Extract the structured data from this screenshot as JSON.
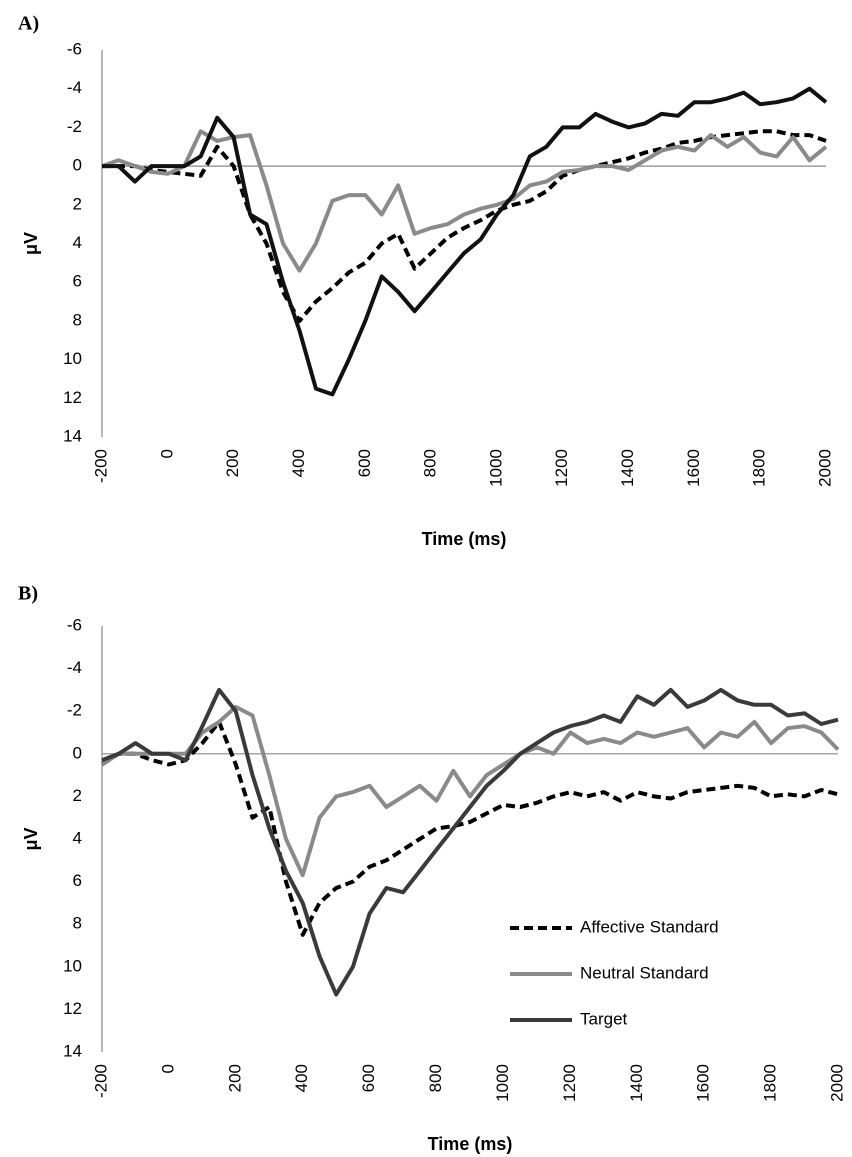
{
  "chart_data": [
    {
      "type": "line",
      "title": "A)",
      "y_label": "μV",
      "x_label": "Time (ms)",
      "x": [
        -200,
        -150,
        -100,
        -50,
        0,
        50,
        100,
        150,
        200,
        250,
        300,
        350,
        400,
        450,
        500,
        550,
        600,
        650,
        700,
        750,
        800,
        850,
        900,
        950,
        1000,
        1050,
        1100,
        1150,
        1200,
        1250,
        1300,
        1350,
        1400,
        1450,
        1500,
        1550,
        1600,
        1650,
        1700,
        1750,
        1800,
        1850,
        1900,
        1950,
        2000
      ],
      "xlim": [
        -200,
        2000
      ],
      "xticks": [
        -200,
        0,
        200,
        400,
        600,
        800,
        1000,
        1200,
        1400,
        1600,
        1800,
        2000
      ],
      "ylim": [
        -6,
        14
      ],
      "y_inverted": true,
      "yticks": [
        -6,
        -4,
        -2,
        0,
        2,
        4,
        6,
        8,
        10,
        12,
        14
      ],
      "series": [
        {
          "color": "#000000",
          "dash": true,
          "values": [
            0,
            0,
            0,
            0.2,
            0.3,
            0.4,
            0.5,
            -1,
            0,
            2.5,
            4,
            6.5,
            8,
            7,
            6.3,
            5.5,
            5,
            4,
            3.5,
            5.3,
            4.5,
            3.7,
            3.2,
            2.8,
            2.3,
            2,
            1.8,
            1.3,
            0.5,
            0.2,
            0,
            -0.2,
            -0.4,
            -0.7,
            -0.9,
            -1.2,
            -1.3,
            -1.5,
            -1.6,
            -1.7,
            -1.8,
            -1.8,
            -1.6,
            -1.6,
            -1.3
          ]
        },
        {
          "color": "#8a8a8a",
          "dash": false,
          "values": [
            0,
            -0.3,
            0,
            0.3,
            0.4,
            0,
            -1.8,
            -1.3,
            -1.5,
            -1.6,
            1,
            4,
            5.4,
            4,
            1.8,
            1.5,
            1.5,
            2.5,
            1,
            3.5,
            3.2,
            3,
            2.5,
            2.2,
            2,
            1.7,
            1,
            0.8,
            0.3,
            0.2,
            0,
            0,
            0.2,
            -0.3,
            -0.8,
            -1,
            -0.8,
            -1.6,
            -1,
            -1.5,
            -0.7,
            -0.5,
            -1.5,
            -0.3,
            -1
          ]
        },
        {
          "color": "#111111",
          "dash": false,
          "values": [
            0,
            0,
            0.8,
            0,
            0,
            0,
            -0.5,
            -2.5,
            -1.5,
            2.5,
            3,
            6,
            8.5,
            11.5,
            11.8,
            10,
            8,
            5.7,
            6.5,
            7.5,
            6.5,
            5.5,
            4.5,
            3.8,
            2.5,
            1.5,
            -0.5,
            -1,
            -2,
            -2,
            -2.7,
            -2.3,
            -2,
            -2.2,
            -2.7,
            -2.6,
            -3.3,
            -3.3,
            -3.5,
            -3.8,
            -3.2,
            -3.3,
            -3.5,
            -4,
            -3.3
          ]
        }
      ]
    },
    {
      "type": "line",
      "title": "B)",
      "y_label": "μV",
      "x_label": "Time (ms)",
      "legend": "lower right",
      "x": [
        -200,
        -150,
        -100,
        -50,
        0,
        50,
        100,
        150,
        200,
        250,
        300,
        350,
        400,
        450,
        500,
        550,
        600,
        650,
        700,
        750,
        800,
        850,
        900,
        950,
        1000,
        1050,
        1100,
        1150,
        1200,
        1250,
        1300,
        1350,
        1400,
        1450,
        1500,
        1550,
        1600,
        1650,
        1700,
        1750,
        1800,
        1850,
        1900,
        1950,
        2000
      ],
      "xlim": [
        -200,
        2000
      ],
      "xticks": [
        -200,
        0,
        200,
        400,
        600,
        800,
        1000,
        1200,
        1400,
        1600,
        1800,
        2000
      ],
      "ylim": [
        -6,
        14
      ],
      "y_inverted": true,
      "yticks": [
        -6,
        -4,
        -2,
        0,
        2,
        4,
        6,
        8,
        10,
        12,
        14
      ],
      "series": [
        {
          "name": "Affective Standard",
          "color": "#000000",
          "dash": true,
          "values": [
            0.5,
            0,
            0,
            0.3,
            0.5,
            0.3,
            -0.5,
            -1.5,
            0.5,
            3,
            2.5,
            6,
            8.5,
            7,
            6.3,
            6,
            5.3,
            5,
            4.5,
            4,
            3.5,
            3.4,
            3.2,
            2.8,
            2.4,
            2.5,
            2.3,
            2,
            1.8,
            2,
            1.8,
            2.2,
            1.8,
            2,
            2.1,
            1.8,
            1.7,
            1.6,
            1.5,
            1.6,
            2,
            1.9,
            2,
            1.7,
            1.9
          ]
        },
        {
          "name": "Neutral Standard",
          "color": "#8a8a8a",
          "dash": false,
          "values": [
            0.5,
            0,
            0,
            0,
            0,
            0,
            -1,
            -1.5,
            -2.2,
            -1.8,
            1,
            4,
            5.7,
            3,
            2,
            1.8,
            1.5,
            2.5,
            2,
            1.5,
            2.2,
            0.8,
            2,
            1,
            0.5,
            0,
            -0.3,
            0,
            -1,
            -0.5,
            -0.7,
            -0.5,
            -1,
            -0.8,
            -1,
            -1.2,
            -0.3,
            -1,
            -0.8,
            -1.5,
            -0.5,
            -1.2,
            -1.3,
            -1,
            -0.2
          ]
        },
        {
          "name": "Target",
          "color": "#3a3a3a",
          "dash": false,
          "values": [
            0.3,
            0,
            -0.5,
            0,
            0,
            0.3,
            -1.3,
            -3,
            -2,
            1,
            3.5,
            5.5,
            7,
            9.5,
            11.3,
            10,
            7.5,
            6.3,
            6.5,
            5.5,
            4.5,
            3.5,
            2.5,
            1.5,
            0.8,
            0,
            -0.5,
            -1,
            -1.3,
            -1.5,
            -1.8,
            -1.5,
            -2.7,
            -2.3,
            -3,
            -2.2,
            -2.5,
            -3,
            -2.5,
            -2.3,
            -2.3,
            -1.8,
            -1.9,
            -1.4,
            -1.6
          ]
        }
      ]
    }
  ]
}
